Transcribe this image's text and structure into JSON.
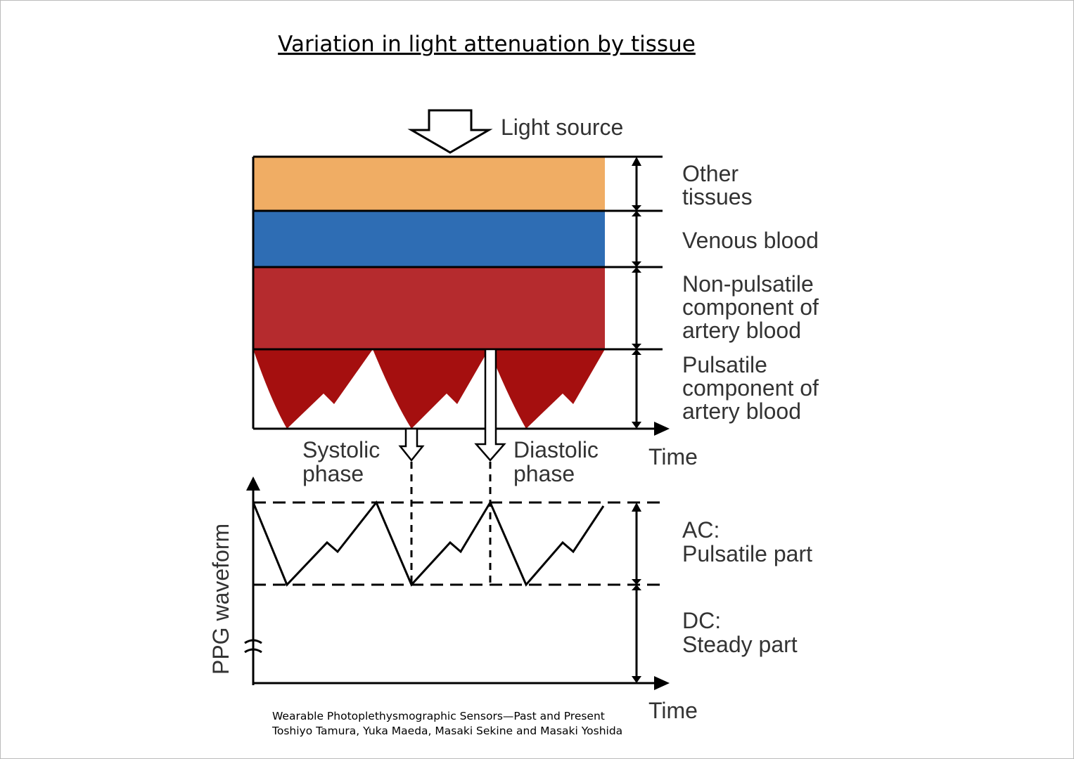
{
  "title": "Variation in light attenuation by tissue",
  "light_source": "Light source",
  "layers": [
    {
      "lines": [
        "Other",
        "tissues"
      ]
    },
    {
      "lines": [
        "Venous blood"
      ]
    },
    {
      "lines": [
        "Non-pulsatile",
        "component of",
        "artery blood"
      ]
    },
    {
      "lines": [
        "Pulsatile",
        "component of",
        "artery blood"
      ]
    }
  ],
  "time_labels": [
    "Time",
    "Time"
  ],
  "phases": [
    {
      "lines": [
        "Systolic",
        "phase"
      ]
    },
    {
      "lines": [
        "Diastolic",
        "phase"
      ]
    }
  ],
  "ppg_axis_label": "PPG waveform",
  "components": [
    {
      "lines": [
        "AC:",
        "Pulsatile part"
      ]
    },
    {
      "lines": [
        "DC:",
        "Steady part"
      ]
    }
  ],
  "citation": [
    "Wearable Photoplethysmographic Sensors—Past and Present",
    "Toshiyo Tamura, Yuka Maeda, Masaki Sekine and Masaki Yoshida"
  ]
}
